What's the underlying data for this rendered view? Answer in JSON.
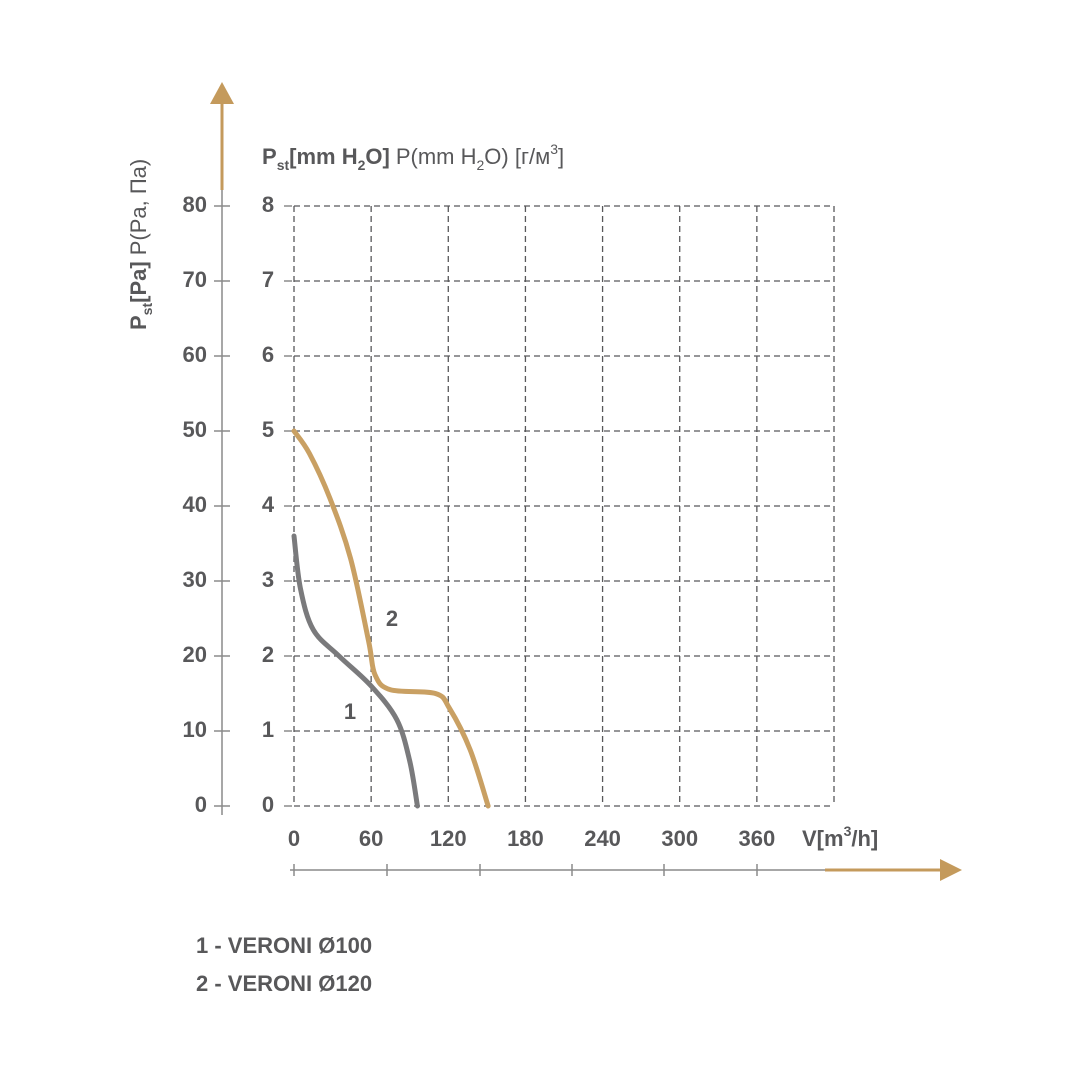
{
  "chart_data": {
    "type": "line",
    "y_label": [
      "P",
      "st",
      "[Pa]",
      "P(Pa, Па)"
    ],
    "y2_label": [
      "P",
      "st",
      "[mm H",
      "2",
      "O]",
      "P(mm H",
      "2",
      "O) [г/м",
      "3",
      "]"
    ],
    "x_label": [
      "V[m",
      "3",
      "/h]"
    ],
    "xlim": [
      0,
      420
    ],
    "xticks": [
      0,
      60,
      120,
      180,
      240,
      300,
      360
    ],
    "ylim": [
      0,
      80
    ],
    "yticks": [
      0,
      10,
      20,
      30,
      40,
      50,
      60,
      70,
      80
    ],
    "y2lim": [
      0,
      8
    ],
    "y2ticks": [
      0,
      1,
      2,
      3,
      4,
      5,
      6,
      7,
      8
    ],
    "grid": true,
    "axis_color": "#c49a5c",
    "series": [
      {
        "name": "1 - VERONI Ø100",
        "label": "1",
        "color": "#7a7a7c",
        "x": [
          0,
          5,
          15,
          35,
          60,
          80,
          90,
          96
        ],
        "values": [
          36,
          29,
          23.5,
          20,
          16,
          11.5,
          6,
          0
        ]
      },
      {
        "name": "2 - VERONI Ø120",
        "label": "2",
        "color": "#c9a063",
        "x": [
          0,
          12,
          28,
          44,
          58,
          63,
          75,
          110,
          121,
          137,
          151
        ],
        "values": [
          50,
          47,
          41,
          33,
          22,
          17.5,
          15.5,
          15,
          13,
          7.5,
          0
        ]
      }
    ]
  }
}
